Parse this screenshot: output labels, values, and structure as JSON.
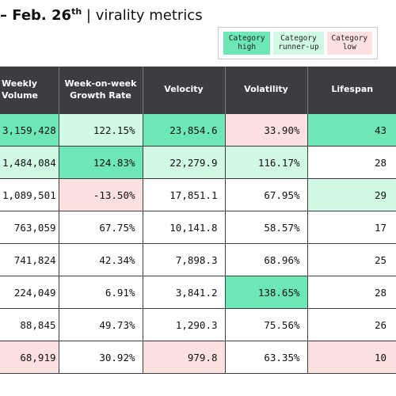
{
  "header": {
    "date_prefix": "– Feb. 26",
    "date_suffix": "th",
    "subtitle": "| virality metrics"
  },
  "legend": {
    "items": [
      {
        "key": "high",
        "label": "Category\nhigh",
        "color": "#6ee7b7"
      },
      {
        "key": "runner",
        "label": "Category\nrunner-up",
        "color": "#d1fae5"
      },
      {
        "key": "low",
        "label": "Category\nlow",
        "color": "#fde0e0"
      }
    ]
  },
  "colors": {
    "high": "#6ee7b7",
    "runner": "#d1fae5",
    "low": "#fde0e0",
    "none": "#ffffff",
    "header_bg": "#3c3d40"
  },
  "table": {
    "columns": [
      {
        "label": "Weekly\nVolume"
      },
      {
        "label": "Week-on-week\nGrowth Rate"
      },
      {
        "label": "Velocity"
      },
      {
        "label": "Volatility"
      },
      {
        "label": "Lifespan"
      }
    ],
    "rows": [
      {
        "cells": [
          {
            "v": "3,159,428",
            "c": "high"
          },
          {
            "v": "122.15%",
            "c": "runner"
          },
          {
            "v": "23,854.6",
            "c": "high"
          },
          {
            "v": "33.90%",
            "c": "low"
          },
          {
            "v": "43",
            "c": "high"
          }
        ]
      },
      {
        "cells": [
          {
            "v": "1,484,084",
            "c": "runner"
          },
          {
            "v": "124.83%",
            "c": "high"
          },
          {
            "v": "22,279.9",
            "c": "runner"
          },
          {
            "v": "116.17%",
            "c": "runner"
          },
          {
            "v": "28",
            "c": "none"
          }
        ]
      },
      {
        "cells": [
          {
            "v": "1,089,501",
            "c": "none"
          },
          {
            "v": "-13.50%",
            "c": "low"
          },
          {
            "v": "17,851.1",
            "c": "none"
          },
          {
            "v": "67.95%",
            "c": "none"
          },
          {
            "v": "29",
            "c": "runner"
          }
        ]
      },
      {
        "cells": [
          {
            "v": "763,059",
            "c": "none"
          },
          {
            "v": "67.75%",
            "c": "none"
          },
          {
            "v": "10,141.8",
            "c": "none"
          },
          {
            "v": "58.57%",
            "c": "none"
          },
          {
            "v": "17",
            "c": "none"
          }
        ]
      },
      {
        "cells": [
          {
            "v": "741,824",
            "c": "none"
          },
          {
            "v": "42.34%",
            "c": "none"
          },
          {
            "v": "7,898.3",
            "c": "none"
          },
          {
            "v": "68.96%",
            "c": "none"
          },
          {
            "v": "25",
            "c": "none"
          }
        ]
      },
      {
        "cells": [
          {
            "v": "224,049",
            "c": "none"
          },
          {
            "v": "6.91%",
            "c": "none"
          },
          {
            "v": "3,841.2",
            "c": "none"
          },
          {
            "v": "138.65%",
            "c": "high"
          },
          {
            "v": "28",
            "c": "none"
          }
        ]
      },
      {
        "cells": [
          {
            "v": "88,845",
            "c": "none"
          },
          {
            "v": "49.73%",
            "c": "none"
          },
          {
            "v": "1,290.3",
            "c": "none"
          },
          {
            "v": "75.56%",
            "c": "none"
          },
          {
            "v": "26",
            "c": "none"
          }
        ]
      },
      {
        "cells": [
          {
            "v": "68,919",
            "c": "low"
          },
          {
            "v": "30.92%",
            "c": "none"
          },
          {
            "v": "979.8",
            "c": "low"
          },
          {
            "v": "63.35%",
            "c": "none"
          },
          {
            "v": "10",
            "c": "low"
          }
        ]
      }
    ]
  }
}
